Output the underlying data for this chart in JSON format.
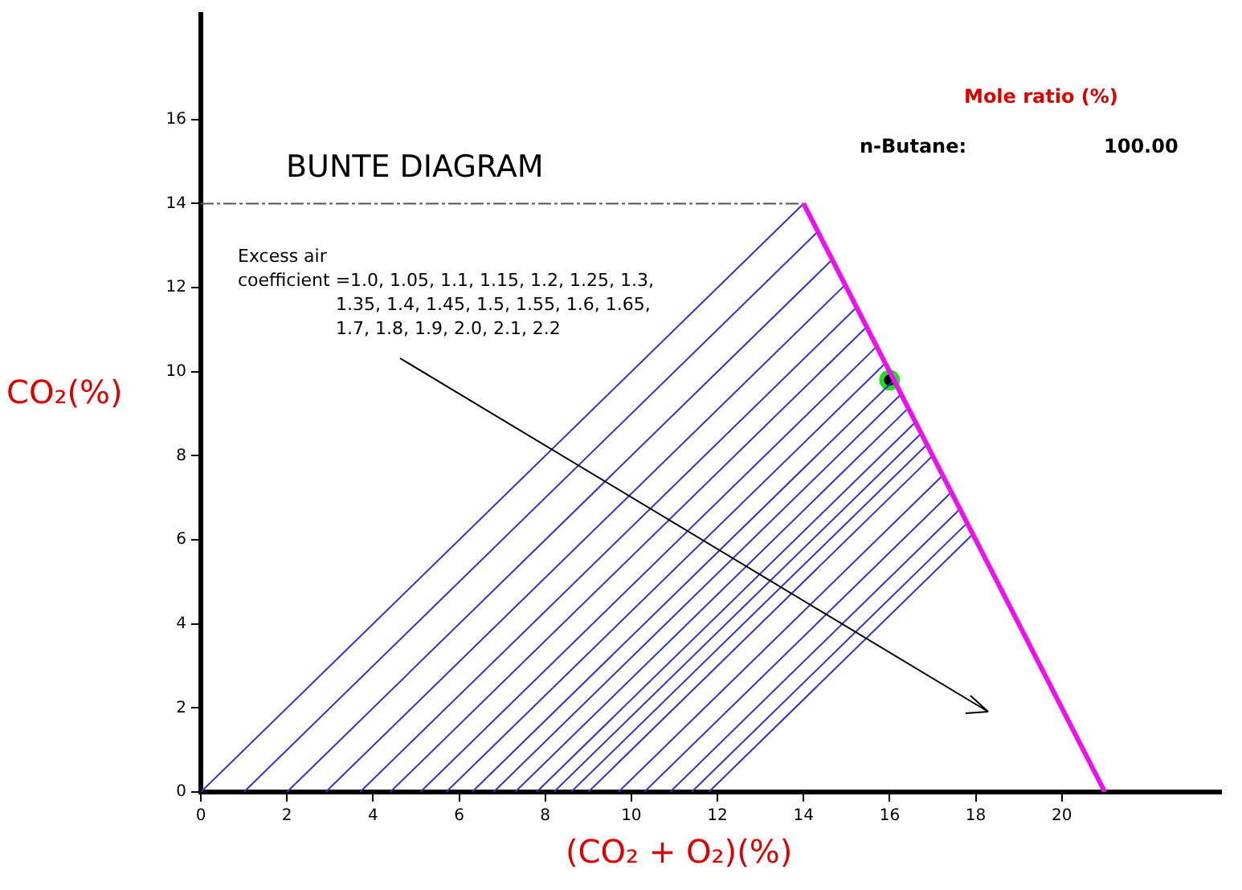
{
  "chart_data": {
    "type": "line",
    "title": "BUNTE DIAGRAM",
    "xlabel": "(CO₂ + O₂)(%)",
    "ylabel": "CO₂(%)",
    "annotations": [
      "Excess air\ncoefficient =1.0, 1.05, 1.1, 1.15, 1.2, 1.25, 1.3,\n1.35, 1.4, 1.45, 1.5, 1.55, 1.6, 1.65,\n1.7, 1.8, 1.9, 2.0, 2.1, 2.2",
      "Mole ratio (%)",
      "n-Butane:",
      "100.00"
    ],
    "xlim": [
      0,
      23.7
    ],
    "ylim": [
      0,
      18.5
    ],
    "xticks": [
      0,
      2,
      4,
      6,
      8,
      10,
      12,
      14,
      16,
      18,
      20
    ],
    "yticks": [
      0,
      2,
      4,
      6,
      8,
      10,
      12,
      14,
      16
    ],
    "grid": false,
    "legend": false,
    "series": [
      {
        "color": "#ee11ee",
        "x": [
          14,
          21
        ],
        "values": [
          14,
          0
        ]
      },
      {
        "color": "#555555",
        "line_style": "dashed",
        "x": [
          0,
          14
        ],
        "values": [
          14,
          14
        ]
      },
      {
        "color": "#3333cc",
        "x": [
          0,
          14
        ],
        "values": [
          0,
          14
        ]
      },
      {
        "color": "#3333cc",
        "x": [
          1.0,
          14.3
        ],
        "values": [
          0,
          13.3
        ]
      },
      {
        "color": "#3333cc",
        "x": [
          2.0,
          14.7
        ],
        "values": [
          0,
          12.7
        ]
      },
      {
        "color": "#3333cc",
        "x": [
          2.9,
          15.0
        ],
        "values": [
          0,
          12.1
        ]
      },
      {
        "color": "#3333cc",
        "x": [
          3.7,
          15.2
        ],
        "values": [
          0,
          11.5
        ]
      },
      {
        "color": "#3333cc",
        "x": [
          4.4,
          15.5
        ],
        "values": [
          0,
          11.1
        ]
      },
      {
        "color": "#3333cc",
        "x": [
          5.1,
          15.7
        ],
        "values": [
          0,
          10.6
        ]
      },
      {
        "color": "#3333cc",
        "x": [
          5.7,
          15.9
        ],
        "values": [
          0,
          10.2
        ]
      },
      {
        "color": "#3333cc",
        "x": [
          6.3,
          16.1
        ],
        "values": [
          0,
          9.8
        ]
      },
      {
        "color": "#3333cc",
        "x": [
          6.8,
          16.3
        ],
        "values": [
          0,
          9.5
        ]
      },
      {
        "color": "#3333cc",
        "x": [
          7.3,
          16.4
        ],
        "values": [
          0,
          9.1
        ]
      },
      {
        "color": "#3333cc",
        "x": [
          7.8,
          16.6
        ],
        "values": [
          0,
          8.8
        ]
      },
      {
        "color": "#3333cc",
        "x": [
          8.2,
          16.7
        ],
        "values": [
          0,
          8.5
        ]
      },
      {
        "color": "#3333cc",
        "x": [
          8.6,
          16.9
        ],
        "values": [
          0,
          8.3
        ]
      },
      {
        "color": "#3333cc",
        "x": [
          9.0,
          17.0
        ],
        "values": [
          0,
          8.0
        ]
      },
      {
        "color": "#3333cc",
        "x": [
          9.7,
          17.2
        ],
        "values": [
          0,
          7.5
        ]
      },
      {
        "color": "#3333cc",
        "x": [
          10.3,
          17.4
        ],
        "values": [
          0,
          7.1
        ]
      },
      {
        "color": "#3333cc",
        "x": [
          10.9,
          17.6
        ],
        "values": [
          0,
          6.7
        ]
      },
      {
        "color": "#3333cc",
        "x": [
          11.4,
          17.8
        ],
        "values": [
          0,
          6.4
        ]
      },
      {
        "color": "#3333cc",
        "x": [
          11.8,
          17.9
        ],
        "values": [
          0,
          6.1
        ]
      },
      {
        "type": "scatter",
        "color": "#22dd22",
        "x": [
          16.0
        ],
        "values": [
          9.8
        ]
      }
    ]
  }
}
